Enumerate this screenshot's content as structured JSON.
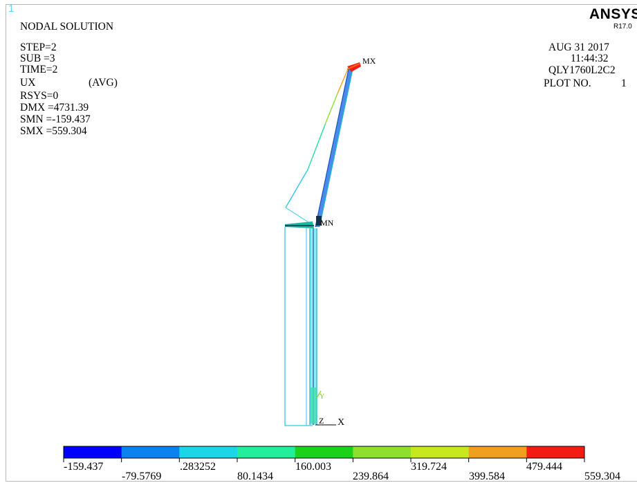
{
  "window": {
    "number": "1"
  },
  "brand": {
    "name": "ANSYS",
    "release": "R17.0"
  },
  "solution": {
    "title": "NODAL SOLUTION",
    "step": "STEP=2",
    "sub": "SUB =3",
    "time": "TIME=2",
    "item": "UX",
    "avg": "(AVG)",
    "rsys": "RSYS=0",
    "dmx": "DMX =4731.39",
    "smn": "SMN =-159.437",
    "smx": "SMX =559.304"
  },
  "info": {
    "date": "AUG 31 2017",
    "time": "11:44:32",
    "job": "QLY1760L2C2",
    "plot_label": "PLOT NO.",
    "plot_no": "1"
  },
  "model": {
    "max_marker": "MX",
    "min_marker": "MN",
    "triad_x": "X",
    "triad_y": "Y",
    "triad_z": "Z"
  },
  "legend": {
    "colors": [
      "#0000ff",
      "#0a82f0",
      "#1bd6e6",
      "#22ef9a",
      "#1bd21b",
      "#8ee02c",
      "#c8e81e",
      "#f0a01e",
      "#f46a16",
      "#f41c12"
    ],
    "labels": [
      "-159.437",
      "-79.5769",
      ".283252",
      "80.1434",
      "160.003",
      "239.864",
      "319.724",
      "399.584",
      "479.444",
      "559.304"
    ]
  }
}
